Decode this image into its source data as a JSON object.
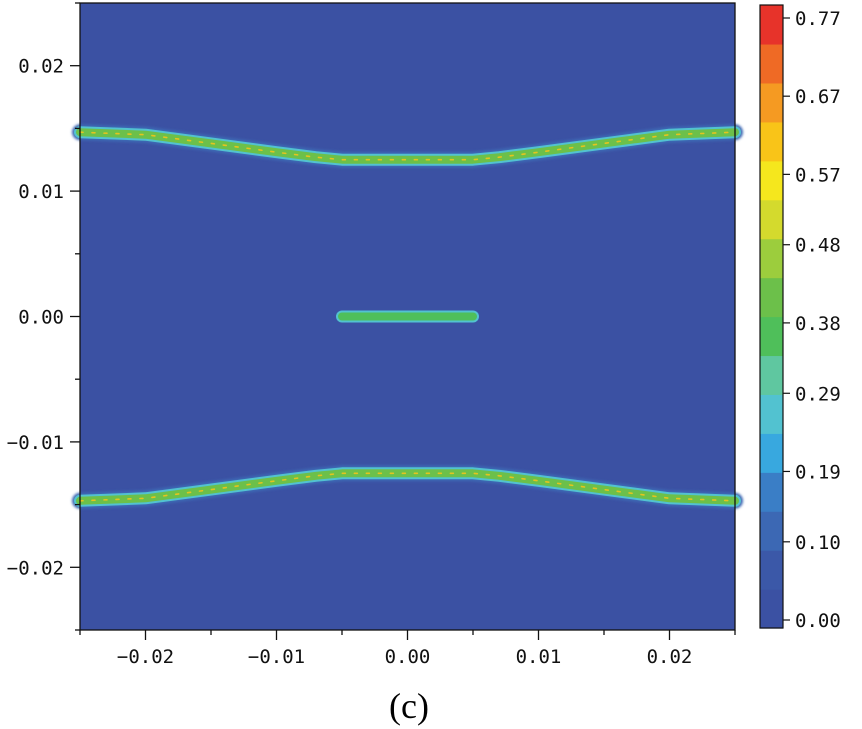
{
  "chart_data": {
    "type": "heatmap",
    "title": "",
    "xlabel": "",
    "ylabel": "",
    "caption": "(c)",
    "xlim": [
      -0.025,
      0.025
    ],
    "ylim": [
      -0.025,
      0.025
    ],
    "x_ticks": [
      -0.02,
      -0.01,
      0.0,
      0.01,
      0.02
    ],
    "x_tick_labels": [
      "−0.02",
      "−0.01",
      "0.00",
      "0.01",
      "0.02"
    ],
    "y_ticks": [
      0.02,
      0.01,
      0.0,
      -0.01,
      -0.02
    ],
    "y_tick_labels": [
      "0.02",
      "0.01",
      "0.00",
      "−0.01",
      "−0.02"
    ],
    "background_value": 0.0,
    "features": [
      {
        "name": "upper-band",
        "points": [
          [
            -0.025,
            0.0147
          ],
          [
            -0.02,
            0.0145
          ],
          [
            -0.015,
            0.0138
          ],
          [
            -0.01,
            0.0131
          ],
          [
            -0.007,
            0.0127
          ],
          [
            -0.005,
            0.0125
          ],
          [
            0.005,
            0.0125
          ],
          [
            0.007,
            0.0127
          ],
          [
            0.01,
            0.0131
          ],
          [
            0.015,
            0.0138
          ],
          [
            0.02,
            0.0145
          ],
          [
            0.025,
            0.0147
          ]
        ],
        "value": 0.42
      },
      {
        "name": "central-segment",
        "points": [
          [
            -0.005,
            0.0
          ],
          [
            0.005,
            0.0
          ]
        ],
        "value": 0.38
      },
      {
        "name": "lower-band",
        "points": [
          [
            -0.025,
            -0.0147
          ],
          [
            -0.02,
            -0.0145
          ],
          [
            -0.015,
            -0.0138
          ],
          [
            -0.01,
            -0.0131
          ],
          [
            -0.007,
            -0.0127
          ],
          [
            -0.005,
            -0.0125
          ],
          [
            0.005,
            -0.0125
          ],
          [
            0.007,
            -0.0127
          ],
          [
            0.01,
            -0.0131
          ],
          [
            0.015,
            -0.0138
          ],
          [
            0.02,
            -0.0145
          ],
          [
            0.025,
            -0.0147
          ]
        ],
        "value": 0.42
      }
    ],
    "colorbar": {
      "min": 0.0,
      "max": 0.8,
      "tick_values": [
        0.77,
        0.67,
        0.57,
        0.48,
        0.38,
        0.29,
        0.19,
        0.1,
        0.0
      ],
      "tick_labels": [
        "0.77",
        "0.67",
        "0.57",
        "0.48",
        "0.38",
        "0.29",
        "0.19",
        "0.10",
        "0.00"
      ],
      "colors": [
        "#3b51a3",
        "#3b58a8",
        "#3c68b4",
        "#3a7ec6",
        "#38a8df",
        "#52c2d0",
        "#5fc7a0",
        "#4fbf5a",
        "#6cc04a",
        "#9ccd3d",
        "#d4da2d",
        "#f5e71d",
        "#f9c418",
        "#f59a22",
        "#ef6a25",
        "#e7332a"
      ]
    }
  }
}
